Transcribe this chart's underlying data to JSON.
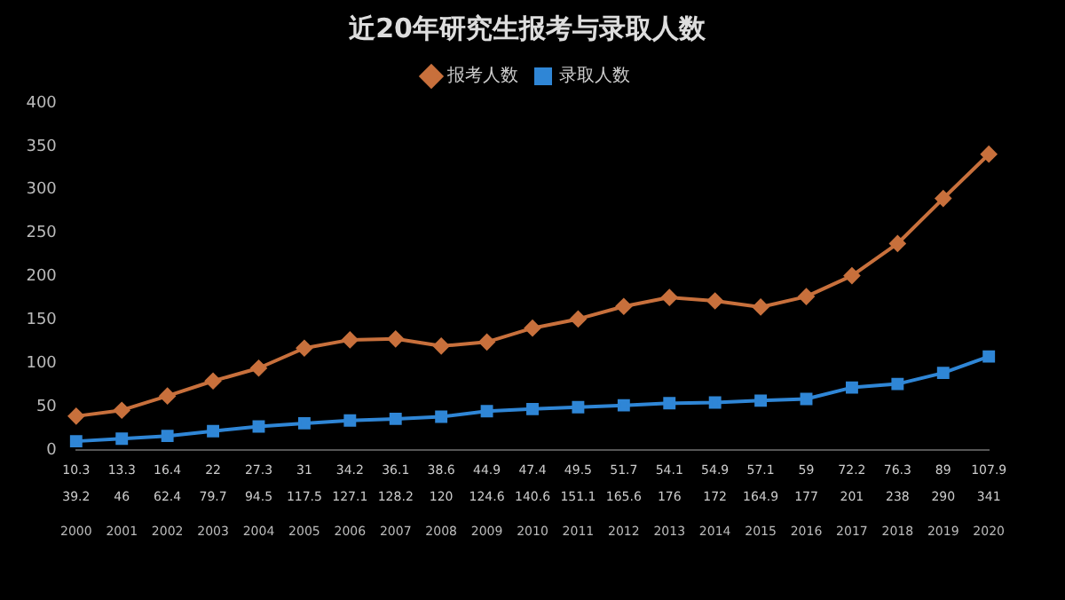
{
  "chart_data": {
    "type": "line",
    "title": "近20年研究生报考与录取人数",
    "categories": [
      "2000",
      "2001",
      "2002",
      "2003",
      "2004",
      "2005",
      "2006",
      "2007",
      "2008",
      "2009",
      "2010",
      "2011",
      "2012",
      "2013",
      "2014",
      "2015",
      "2016",
      "2017",
      "2018",
      "2019",
      "2020"
    ],
    "series": [
      {
        "name": "报考人数",
        "color": "#c8703c",
        "marker": "diamond",
        "values": [
          39.2,
          46,
          62.4,
          79.7,
          94.5,
          117.5,
          127.1,
          128.2,
          120,
          124.6,
          140.6,
          151.1,
          165.6,
          176,
          172,
          164.9,
          177,
          201,
          238,
          290,
          341
        ]
      },
      {
        "name": "录取人数",
        "color": "#2f86d6",
        "marker": "square",
        "values": [
          10.3,
          13.3,
          16.4,
          22,
          27.3,
          31,
          34.2,
          36.1,
          38.6,
          44.9,
          47.4,
          49.5,
          51.7,
          54.1,
          54.9,
          57.1,
          59,
          72.2,
          76.3,
          89,
          107.9
        ]
      }
    ],
    "ylim": [
      0,
      400
    ],
    "yticks": [
      0,
      50,
      100,
      150,
      200,
      250,
      300,
      350,
      400
    ],
    "grid": false,
    "legend": "top",
    "data_labels": true,
    "line_style": "solid"
  }
}
